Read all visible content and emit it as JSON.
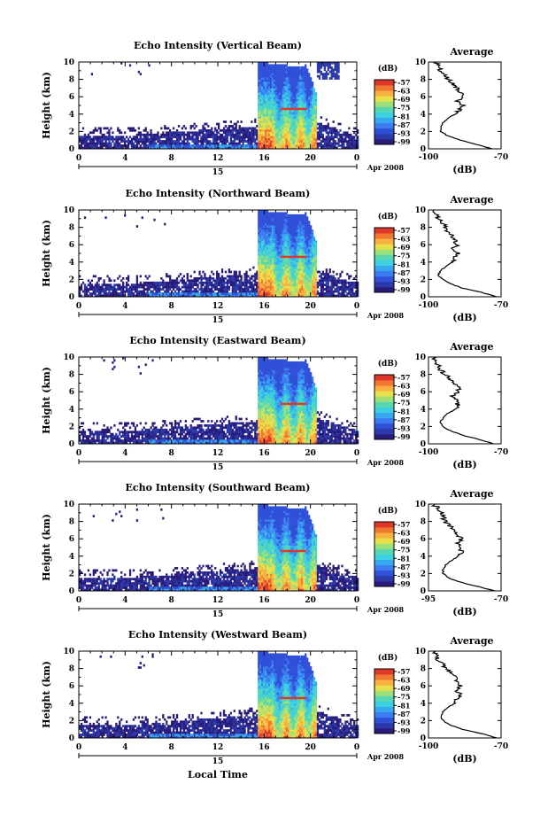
{
  "figure": {
    "xlabel_bottom": "Local Time",
    "date_label": "Apr 2008",
    "day_label": "15",
    "colorbar_unit": "(dB)",
    "average_title": "Average",
    "average_xlabel": "(dB)"
  },
  "colors": {
    "scale": [
      "#2a1a7a",
      "#2b3aa8",
      "#3050d8",
      "#3b7cf0",
      "#37a8f0",
      "#3cd0e0",
      "#57d8b0",
      "#9ee07a",
      "#e8e04a",
      "#f8b040",
      "#f07830",
      "#e03828"
    ]
  },
  "chart_data": [
    {
      "type": "heatmap",
      "title": "Echo Intensity (Vertical Beam)",
      "ylabel": "Height (km)",
      "x_ticks": [
        "0",
        "4",
        "8",
        "12",
        "16",
        "20",
        "0"
      ],
      "y_ticks": [
        "0",
        "2",
        "4",
        "6",
        "8",
        "10"
      ],
      "xlim": [
        0,
        24
      ],
      "ylim": [
        0,
        10
      ],
      "colorbar_ticks": [
        "-57",
        "-63",
        "-69",
        "-75",
        "-81",
        "-87",
        "-93",
        "-99"
      ],
      "average": {
        "title": "Average",
        "xlabel": "(dB)",
        "x_ticks": [
          "-100",
          "-70"
        ],
        "y_ticks": [
          "0",
          "2",
          "4",
          "6",
          "8",
          "10"
        ],
        "xlim": [
          -100,
          -70
        ],
        "ylim": [
          0,
          10
        ],
        "heights": [
          0,
          0.5,
          1,
          1.5,
          2,
          2.5,
          3,
          3.5,
          4,
          4.5,
          5,
          5.5,
          6,
          6.5,
          7,
          7.5,
          8,
          8.5,
          9,
          9.5,
          10
        ],
        "values": [
          -74,
          -80,
          -87,
          -92,
          -95,
          -95,
          -94,
          -92,
          -89,
          -87,
          -86,
          -88,
          -86,
          -87,
          -88,
          -90,
          -92,
          -93,
          -95,
          -96,
          -97
        ]
      }
    },
    {
      "type": "heatmap",
      "title": "Echo Intensity (Northward Beam)",
      "ylabel": "Height (km)",
      "x_ticks": [
        "0",
        "4",
        "8",
        "12",
        "16",
        "20",
        "0"
      ],
      "y_ticks": [
        "0",
        "2",
        "4",
        "6",
        "8",
        "10"
      ],
      "xlim": [
        0,
        24
      ],
      "ylim": [
        0,
        10
      ],
      "colorbar_ticks": [
        "-57",
        "-63",
        "-69",
        "-75",
        "-81",
        "-87",
        "-93",
        "-99"
      ],
      "average": {
        "title": "Average",
        "xlabel": "(dB)",
        "x_ticks": [
          "-100",
          "-70"
        ],
        "y_ticks": [
          "0",
          "2",
          "4",
          "6",
          "8",
          "10"
        ],
        "xlim": [
          -100,
          -70
        ],
        "ylim": [
          0,
          10
        ],
        "heights": [
          0,
          0.5,
          1,
          1.5,
          2,
          2.5,
          3,
          3.5,
          4,
          4.5,
          5,
          5.5,
          6,
          6.5,
          7,
          7.5,
          8,
          8.5,
          9,
          9.5,
          10
        ],
        "values": [
          -72,
          -78,
          -86,
          -91,
          -94,
          -96,
          -95,
          -93,
          -90,
          -89,
          -88,
          -90,
          -88,
          -89,
          -90,
          -92,
          -93,
          -94,
          -96,
          -97,
          -98
        ]
      }
    },
    {
      "type": "heatmap",
      "title": "Echo Intensity (Eastward Beam)",
      "ylabel": "Height (km)",
      "x_ticks": [
        "0",
        "4",
        "8",
        "12",
        "16",
        "20",
        "0"
      ],
      "y_ticks": [
        "0",
        "2",
        "4",
        "6",
        "8",
        "10"
      ],
      "xlim": [
        0,
        24
      ],
      "ylim": [
        0,
        10
      ],
      "colorbar_ticks": [
        "-57",
        "-63",
        "-69",
        "-75",
        "-81",
        "-87",
        "-93",
        "-99"
      ],
      "average": {
        "title": "Average",
        "xlabel": "(dB)",
        "x_ticks": [
          "-100",
          "-70"
        ],
        "y_ticks": [
          "0",
          "2",
          "4",
          "6",
          "8",
          "10"
        ],
        "xlim": [
          -100,
          -70
        ],
        "ylim": [
          0,
          10
        ],
        "heights": [
          0,
          0.5,
          1,
          1.5,
          2,
          2.5,
          3,
          3.5,
          4,
          4.5,
          5,
          5.5,
          6,
          6.5,
          7,
          7.5,
          8,
          8.5,
          9,
          9.5,
          10
        ],
        "values": [
          -73,
          -79,
          -86,
          -91,
          -94,
          -95,
          -94,
          -92,
          -89,
          -88,
          -88,
          -90,
          -87,
          -88,
          -89,
          -91,
          -93,
          -95,
          -96,
          -97,
          -98
        ]
      }
    },
    {
      "type": "heatmap",
      "title": "Echo Intensity (Southward Beam)",
      "ylabel": "Height (km)",
      "x_ticks": [
        "0",
        "4",
        "8",
        "12",
        "16",
        "20",
        "0"
      ],
      "y_ticks": [
        "0",
        "2",
        "4",
        "6",
        "8",
        "10"
      ],
      "xlim": [
        0,
        24
      ],
      "ylim": [
        0,
        10
      ],
      "colorbar_ticks": [
        "-57",
        "-63",
        "-69",
        "-75",
        "-81",
        "-87",
        "-93",
        "-99"
      ],
      "average": {
        "title": "Average",
        "xlabel": "(dB)",
        "x_ticks": [
          "-95",
          "-70"
        ],
        "y_ticks": [
          "0",
          "2",
          "4",
          "6",
          "8",
          "10"
        ],
        "xlim": [
          -95,
          -70
        ],
        "ylim": [
          0,
          10
        ],
        "heights": [
          0,
          0.5,
          1,
          1.5,
          2,
          2.5,
          3,
          3.5,
          4,
          4.5,
          5,
          5.5,
          6,
          6.5,
          7,
          7.5,
          8,
          8.5,
          9,
          9.5,
          10
        ],
        "values": [
          -72,
          -78,
          -84,
          -88,
          -90,
          -90,
          -89,
          -87,
          -85,
          -84,
          -83,
          -85,
          -84,
          -85,
          -86,
          -88,
          -89,
          -90,
          -91,
          -92,
          -93
        ]
      }
    },
    {
      "type": "heatmap",
      "title": "Echo Intensity (Westward Beam)",
      "ylabel": "Height (km)",
      "x_ticks": [
        "0",
        "4",
        "8",
        "12",
        "16",
        "20",
        "0"
      ],
      "y_ticks": [
        "0",
        "2",
        "4",
        "6",
        "8",
        "10"
      ],
      "xlim": [
        0,
        24
      ],
      "ylim": [
        0,
        10
      ],
      "colorbar_ticks": [
        "-57",
        "-63",
        "-69",
        "-75",
        "-81",
        "-87",
        "-93",
        "-99"
      ],
      "average": {
        "title": "Average",
        "xlabel": "(dB)",
        "x_ticks": [
          "-100",
          "-70"
        ],
        "y_ticks": [
          "0",
          "2",
          "4",
          "6",
          "8",
          "10"
        ],
        "xlim": [
          -100,
          -70
        ],
        "ylim": [
          0,
          10
        ],
        "heights": [
          0,
          0.5,
          1,
          1.5,
          2,
          2.5,
          3,
          3.5,
          4,
          4.5,
          5,
          5.5,
          6,
          6.5,
          7,
          7.5,
          8,
          8.5,
          9,
          9.5,
          10
        ],
        "values": [
          -72,
          -78,
          -86,
          -91,
          -94,
          -95,
          -94,
          -92,
          -89,
          -88,
          -87,
          -89,
          -87,
          -88,
          -89,
          -91,
          -93,
          -94,
          -96,
          -97,
          -98
        ]
      }
    }
  ]
}
